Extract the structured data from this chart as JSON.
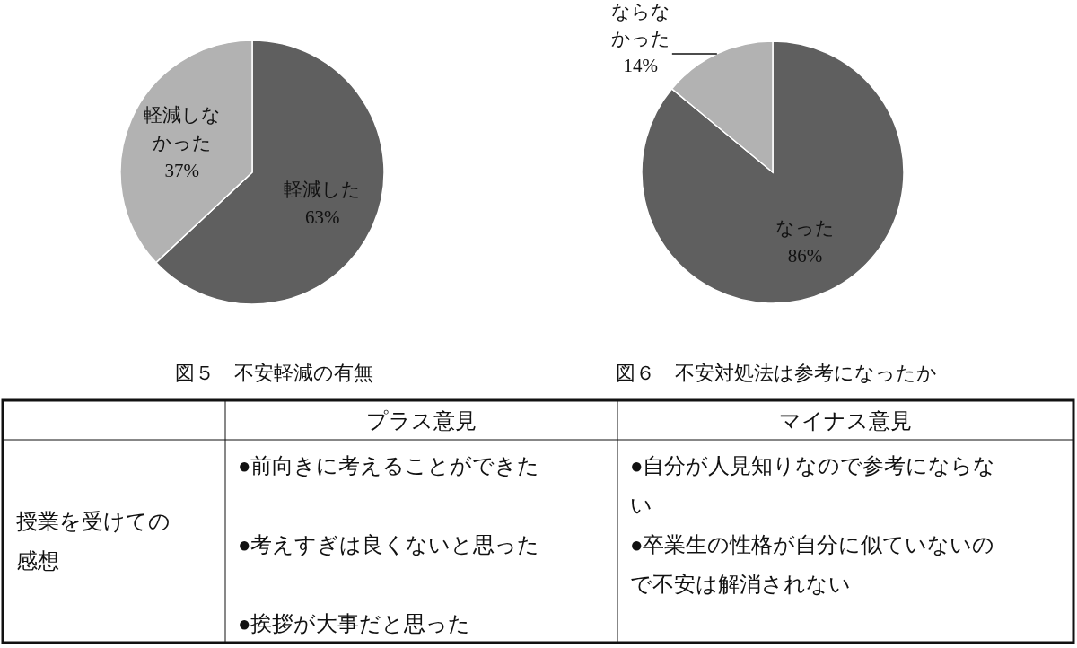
{
  "chart_data": [
    {
      "type": "pie",
      "title": "図５　不安軽減の有無",
      "categories": [
        "軽減した",
        "軽減しなかった"
      ],
      "values": [
        63,
        37
      ],
      "colors": [
        "#5f5f5f",
        "#b2b2b2"
      ],
      "value_labels": [
        "63%",
        "37%"
      ]
    },
    {
      "type": "pie",
      "title": "図６　不安対処法は参考になったか",
      "categories": [
        "なった",
        "ならなかった"
      ],
      "values": [
        86,
        14
      ],
      "colors": [
        "#5f5f5f",
        "#b2b2b2"
      ],
      "value_labels": [
        "86%",
        "14%"
      ]
    },
    {
      "type": "other",
      "categories": [
        null,
        "プラス意見",
        "マイナス意見"
      ],
      "y_categories": [
        "授業を受けての感想"
      ],
      "cell_labels": [
        [
          [
            "●前向きに考えることができた",
            "●考えすぎは良くないと思った",
            "●挨拶が大事だと思った"
          ],
          [
            "●自分が人見知りなので参考にならない",
            "●卒業生の性格が自分に似ていないので不安は解消されない"
          ]
        ]
      ]
    }
  ]
}
